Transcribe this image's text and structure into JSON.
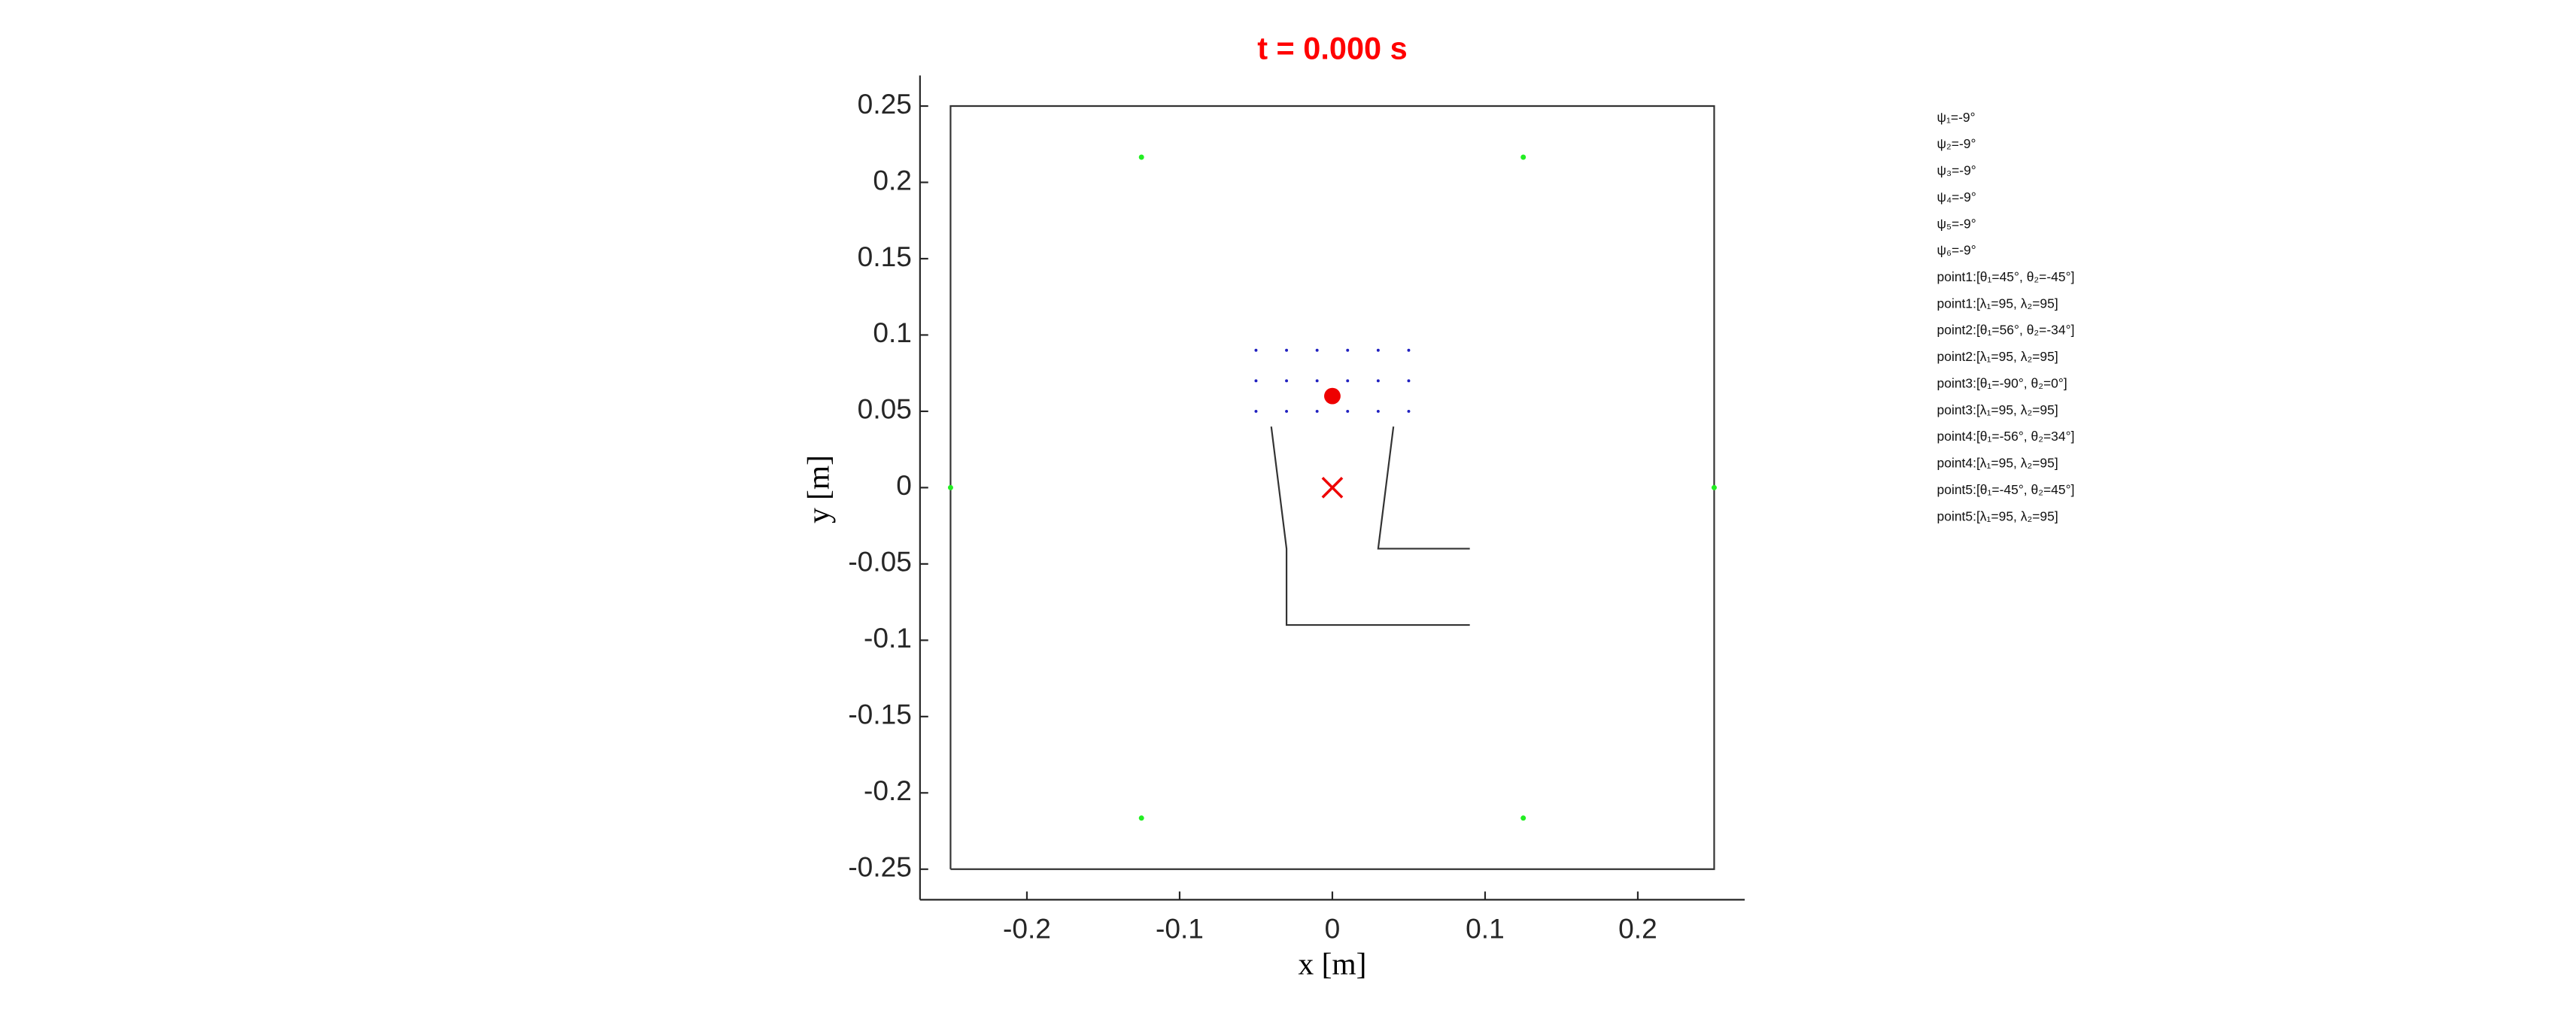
{
  "chart_data": {
    "type": "line",
    "title": "t = 0.000 s",
    "title_color": "#ff0000",
    "xlabel": "x [m]",
    "ylabel": "y [m]",
    "xlim": [
      -0.27,
      0.27
    ],
    "ylim": [
      -0.27,
      0.27
    ],
    "xticks": [
      -0.2,
      -0.1,
      0,
      0.1,
      0.2
    ],
    "yticks": [
      -0.25,
      -0.2,
      -0.15,
      -0.1,
      -0.05,
      0,
      0.05,
      0.1,
      0.15,
      0.2,
      0.25
    ],
    "grid": false,
    "series": [
      {
        "style": "line",
        "color": "#333333",
        "x": [
          -0.25,
          0.25,
          0.25,
          -0.25,
          -0.25
        ],
        "values": [
          -0.25,
          -0.25,
          0.25,
          0.25,
          -0.25
        ]
      },
      {
        "style": "line",
        "color": "#333333",
        "x": [
          -0.04,
          -0.03,
          -0.03,
          0.09
        ],
        "values": [
          0.04,
          -0.04,
          -0.09,
          -0.09
        ]
      },
      {
        "style": "line",
        "color": "#333333",
        "x": [
          0.04,
          0.03,
          0.09
        ],
        "values": [
          0.04,
          -0.04,
          -0.04
        ]
      },
      {
        "style": "marker",
        "color": "#22ee22",
        "x": [
          0.125,
          -0.125,
          -0.25,
          -0.125,
          0.125,
          0.25
        ],
        "values": [
          0.2165,
          0.2165,
          0,
          -0.2165,
          -0.2165,
          0
        ]
      },
      {
        "style": "dot",
        "color": "#2020c0",
        "x": [
          -0.05,
          -0.03,
          -0.01,
          0.01,
          0.03,
          0.05,
          -0.05,
          -0.03,
          -0.01,
          0.01,
          0.03,
          0.05,
          -0.05,
          -0.03,
          -0.01,
          0.01,
          0.03,
          0.05
        ],
        "values": [
          0.09,
          0.09,
          0.09,
          0.09,
          0.09,
          0.09,
          0.07,
          0.07,
          0.07,
          0.07,
          0.07,
          0.07,
          0.05,
          0.05,
          0.05,
          0.05,
          0.05,
          0.05
        ]
      },
      {
        "style": "big",
        "color": "#ee0000",
        "x": [
          0
        ],
        "values": [
          0.06
        ]
      },
      {
        "style": "cross",
        "color": "#ee0000",
        "x": [
          0
        ],
        "values": [
          0
        ]
      }
    ],
    "annotations": [
      "ψ₁=-9°",
      "ψ₂=-9°",
      "ψ₃=-9°",
      "ψ₄=-9°",
      "ψ₅=-9°",
      "ψ₆=-9°",
      "point1:[θ₁=45°, θ₂=-45°]",
      "point1:[λ₁=95, λ₂=95]",
      "point2:[θ₁=56°, θ₂=-34°]",
      "point2:[λ₁=95, λ₂=95]",
      "point3:[θ₁=-90°, θ₂=0°]",
      "point3:[λ₁=95, λ₂=95]",
      "point4:[θ₁=-56°, θ₂=34°]",
      "point4:[λ₁=95, λ₂=95]",
      "point5:[θ₁=-45°, θ₂=45°]",
      "point5:[λ₁=95, λ₂=95]"
    ]
  }
}
